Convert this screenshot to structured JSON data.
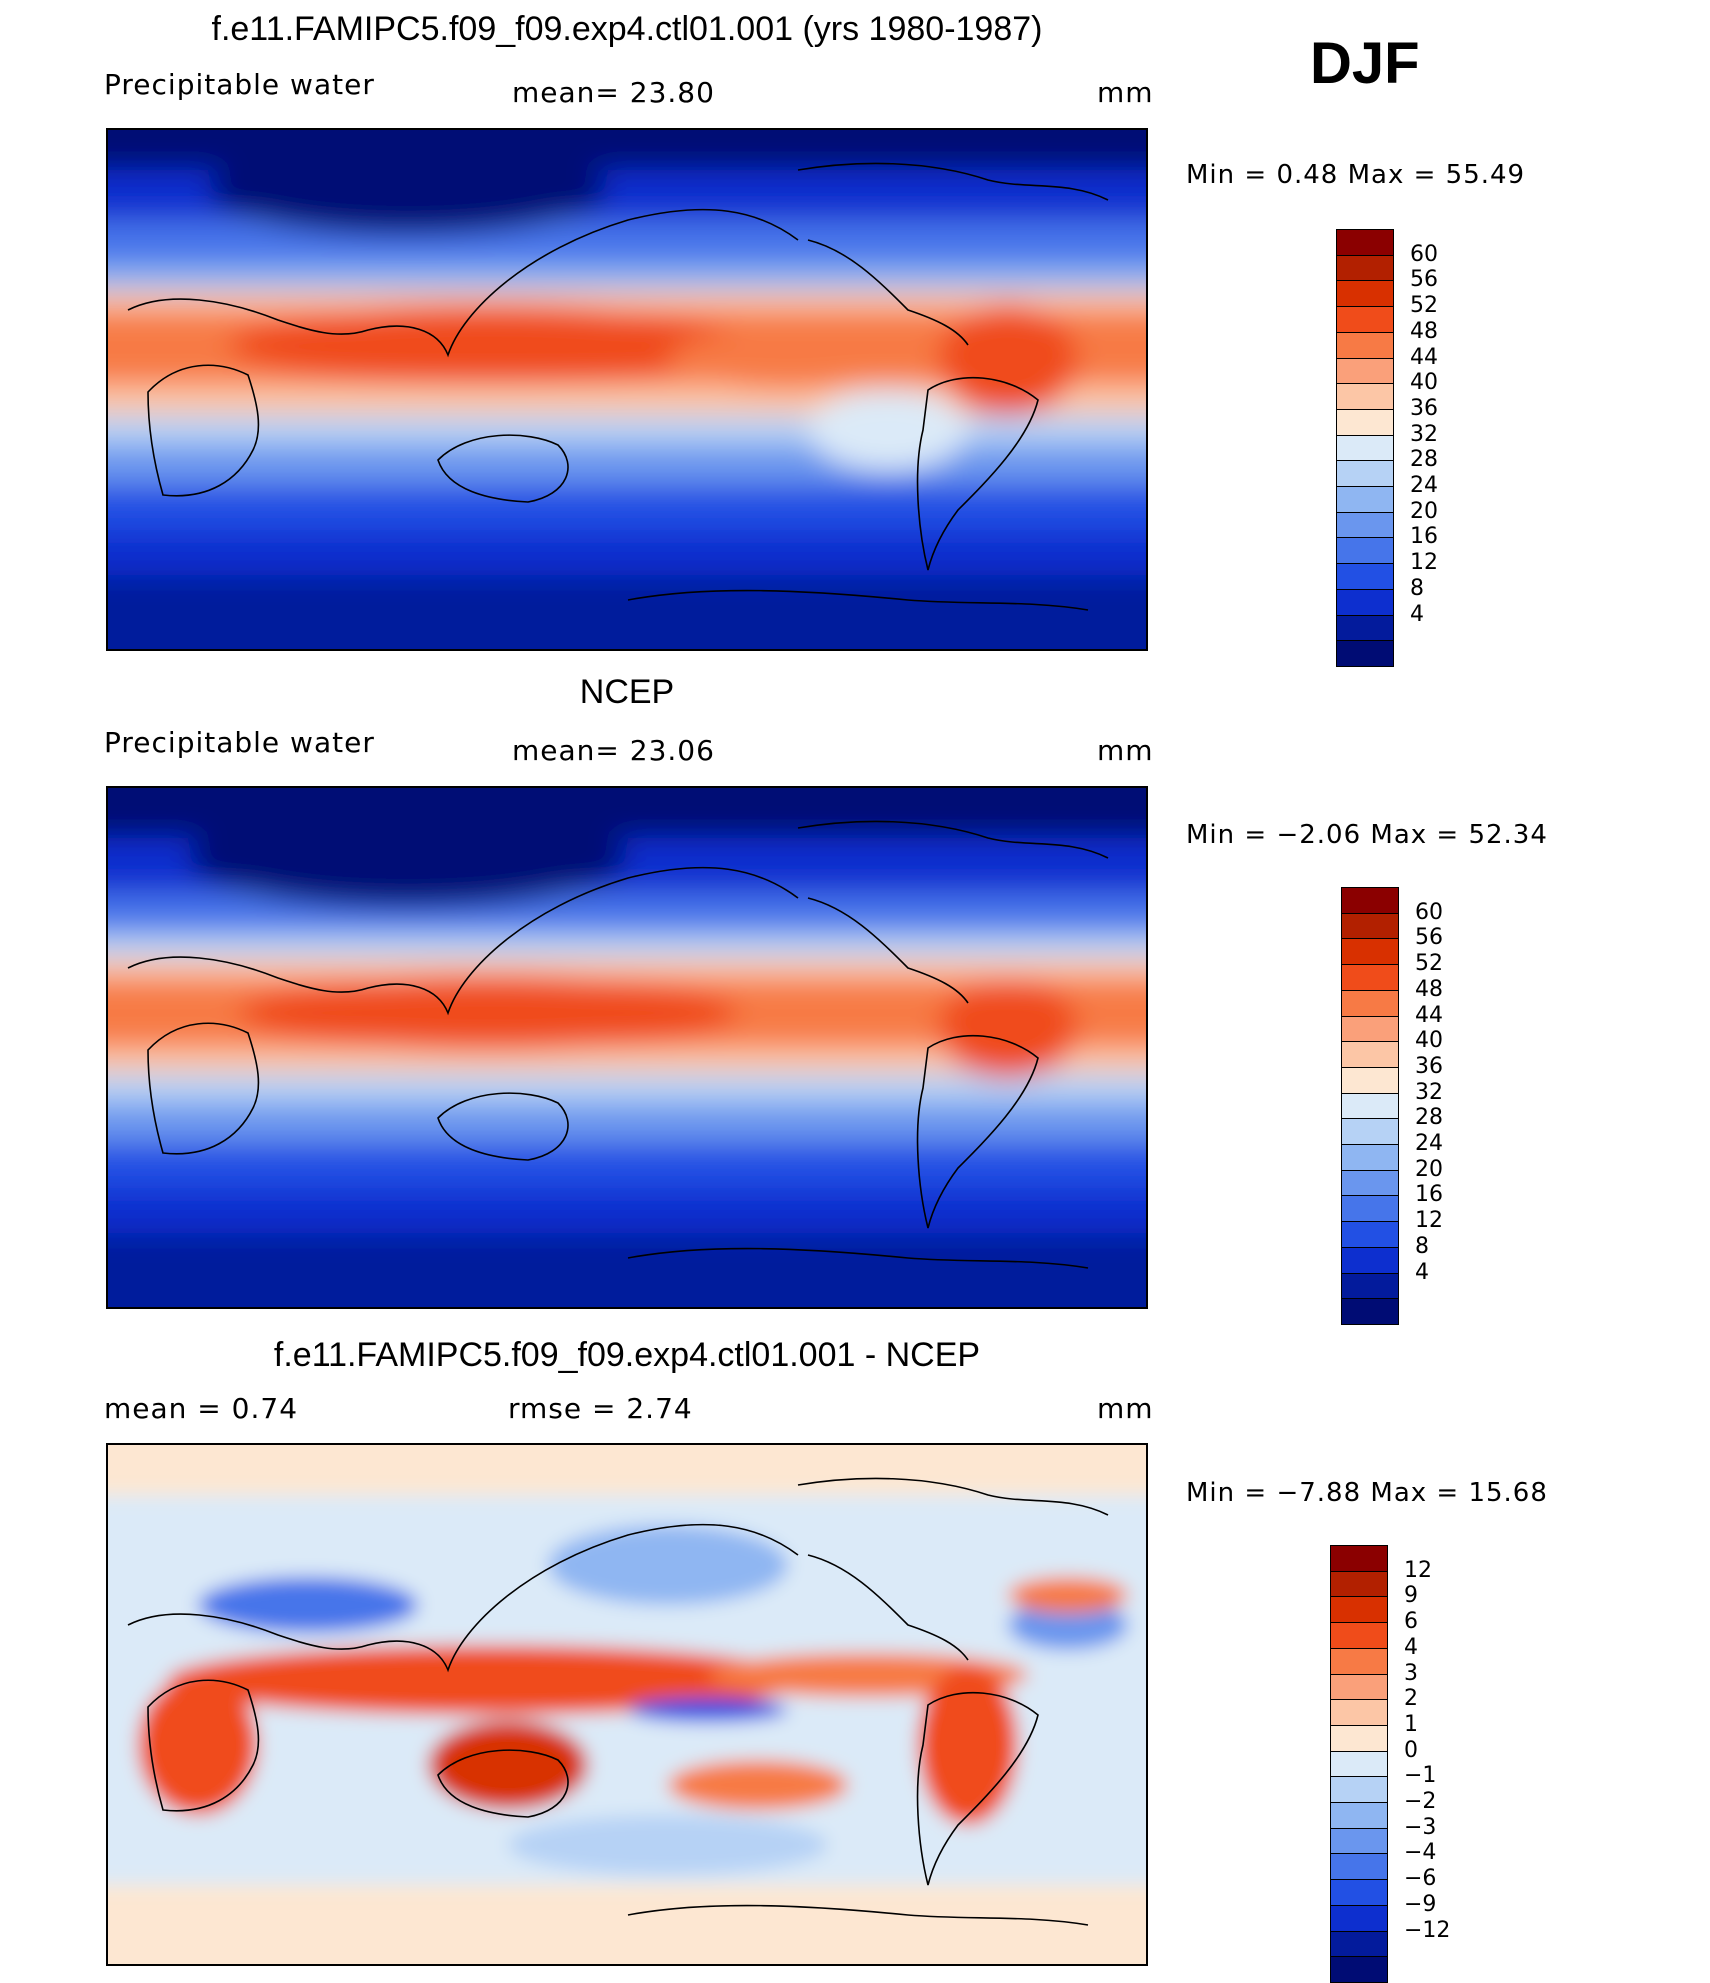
{
  "season": "DJF",
  "panels": [
    {
      "title": "f.e11.FAMIPC5.f09_f09.exp4.ctl01.001 (yrs 1980-1987)",
      "left_label": "Precipitable  water",
      "mid_label": "mean=   23.80",
      "units": "mm",
      "minmax": "Min  =     0.48  Max  =    55.49",
      "colors": [
        "#8b0000",
        "#b22000",
        "#d83000",
        "#f04c1a",
        "#f77a45",
        "#faa07a",
        "#fcc6a6",
        "#fde7d2",
        "#dbeaf8",
        "#b6d2f5",
        "#8fb6f2",
        "#6a96ee",
        "#4675ea",
        "#2250e4",
        "#0d2fcf",
        "#031b9c",
        "#000c74"
      ],
      "labels": [
        "60",
        "56",
        "52",
        "48",
        "44",
        "40",
        "36",
        "32",
        "28",
        "24",
        "20",
        "16",
        "12",
        "8",
        "4"
      ]
    },
    {
      "title": "NCEP",
      "left_label": "Precipitable  water",
      "mid_label": "mean=   23.06",
      "units": "mm",
      "minmax": "Min  =   −2.06  Max  =    52.34",
      "colors": [
        "#8b0000",
        "#b22000",
        "#d83000",
        "#f04c1a",
        "#f77a45",
        "#faa07a",
        "#fcc6a6",
        "#fde7d2",
        "#dbeaf8",
        "#b6d2f5",
        "#8fb6f2",
        "#6a96ee",
        "#4675ea",
        "#2250e4",
        "#0d2fcf",
        "#031b9c",
        "#000c74"
      ],
      "labels": [
        "60",
        "56",
        "52",
        "48",
        "44",
        "40",
        "36",
        "32",
        "28",
        "24",
        "20",
        "16",
        "12",
        "8",
        "4"
      ]
    },
    {
      "title": "f.e11.FAMIPC5.f09_f09.exp4.ctl01.001 - NCEP",
      "left_label": "mean  =     0.74",
      "mid_label": "rmse  =     2.74",
      "units": "mm",
      "minmax": "Min  =   −7.88  Max  =    15.68",
      "colors": [
        "#8b0000",
        "#b22000",
        "#d83000",
        "#f04c1a",
        "#f77a45",
        "#faa07a",
        "#fcc6a6",
        "#fde7d2",
        "#dbeaf8",
        "#b6d2f5",
        "#8fb6f2",
        "#6a96ee",
        "#4675ea",
        "#2250e4",
        "#0d2fcf",
        "#031b9c",
        "#000c74"
      ],
      "labels": [
        "12",
        "9",
        "6",
        "4",
        "3",
        "2",
        "1",
        "0",
        "−1",
        "−2",
        "−3",
        "−4",
        "−6",
        "−9",
        "−12"
      ]
    }
  ],
  "chart_data": [
    {
      "type": "heatmap",
      "title": "f.e11.FAMIPC5.f09_f09.exp4.ctl01.001 (yrs 1980-1987)",
      "variable": "Precipitable  water",
      "units": "mm",
      "mean": 23.8,
      "min": 0.48,
      "max": 55.49,
      "contour_levels": [
        4,
        8,
        12,
        16,
        20,
        24,
        28,
        32,
        36,
        40,
        44,
        48,
        52,
        56,
        60
      ]
    },
    {
      "type": "heatmap",
      "title": "NCEP",
      "variable": "Precipitable  water",
      "units": "mm",
      "mean": 23.06,
      "min": -2.06,
      "max": 52.34,
      "contour_levels": [
        4,
        8,
        12,
        16,
        20,
        24,
        28,
        32,
        36,
        40,
        44,
        48,
        52,
        56,
        60
      ]
    },
    {
      "type": "heatmap",
      "title": "f.e11.FAMIPC5.f09_f09.exp4.ctl01.001 - NCEP",
      "units": "mm",
      "mean": 0.74,
      "rmse": 2.74,
      "min": -7.88,
      "max": 15.68,
      "contour_levels": [
        -12,
        -9,
        -6,
        -4,
        -3,
        -2,
        -1,
        0,
        1,
        2,
        3,
        4,
        6,
        9,
        12
      ]
    }
  ]
}
